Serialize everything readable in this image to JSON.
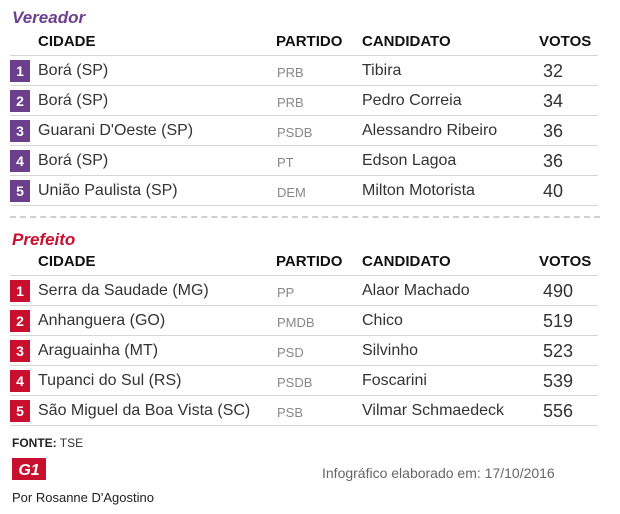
{
  "vereador": {
    "title": "Vereador",
    "headers": {
      "cidade": "CIDADE",
      "partido": "PARTIDO",
      "candidato": "CANDIDATO",
      "votos": "VOTOS"
    },
    "rows": [
      {
        "num": "1",
        "cidade": "Borá (SP)",
        "partido": "PRB",
        "candidato": "Tibira",
        "votos": "32"
      },
      {
        "num": "2",
        "cidade": "Borá (SP)",
        "partido": "PRB",
        "candidato": "Pedro Correia",
        "votos": "34"
      },
      {
        "num": "3",
        "cidade": "Guarani D'Oeste (SP)",
        "partido": "PSDB",
        "candidato": "Alessandro Ribeiro",
        "votos": "36"
      },
      {
        "num": "4",
        "cidade": "Borá (SP)",
        "partido": "PT",
        "candidato": "Edson Lagoa",
        "votos": "36"
      },
      {
        "num": "5",
        "cidade": "União Paulista (SP)",
        "partido": "DEM",
        "candidato": "Milton Motorista",
        "votos": "40"
      }
    ]
  },
  "prefeito": {
    "title": "Prefeito",
    "headers": {
      "cidade": "CIDADE",
      "partido": "PARTIDO",
      "candidato": "CANDIDATO",
      "votos": "VOTOS"
    },
    "rows": [
      {
        "num": "1",
        "cidade": "Serra da Saudade (MG)",
        "partido": "PP",
        "candidato": "Alaor Machado",
        "votos": "490"
      },
      {
        "num": "2",
        "cidade": "Anhanguera (GO)",
        "partido": "PMDB",
        "candidato": "Chico",
        "votos": "519"
      },
      {
        "num": "3",
        "cidade": "Araguainha (MT)",
        "partido": "PSD",
        "candidato": "Silvinho",
        "votos": "523"
      },
      {
        "num": "4",
        "cidade": "Tupanci do Sul (RS)",
        "partido": "PSDB",
        "candidato": "Foscarini",
        "votos": "539"
      },
      {
        "num": "5",
        "cidade": "São Miguel da Boa Vista  (SC)",
        "partido": "PSB",
        "candidato": "Vilmar Schmaedeck",
        "votos": "556"
      }
    ]
  },
  "footer": {
    "fonte_label": "FONTE:",
    "fonte_value": "TSE",
    "logo_text": "G1",
    "infografico": "Infográfico elaborado em: 17/10/2016",
    "credit": "Por Rosanne D'Agostino"
  },
  "colors": {
    "vereador": "#6b3f8c",
    "prefeito": "#c8102e"
  }
}
